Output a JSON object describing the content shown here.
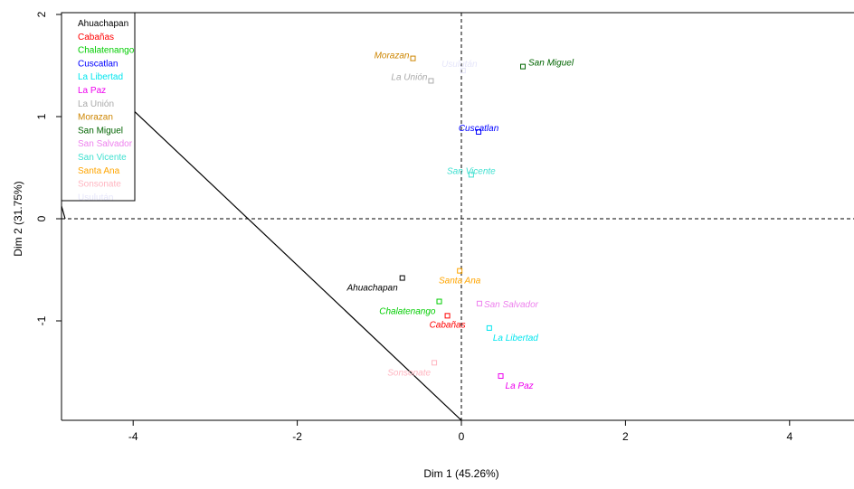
{
  "chart_data": {
    "type": "scatter",
    "xlabel": "Dim 1 (45.26%)",
    "ylabel": "Dim 2 (31.75%)",
    "xlim": [
      -4.85,
      4.85
    ],
    "ylim": [
      -1.95,
      2.0
    ],
    "xticks": [
      -4,
      -2,
      0,
      2,
      4
    ],
    "yticks": [
      -1,
      0,
      1,
      2
    ],
    "grid": false,
    "reference_lines": [
      "x=0 dashed",
      "y=0 dashed"
    ],
    "legend_position": "top-left",
    "series": [
      {
        "name": "Ahuachapan",
        "color": "#000000",
        "x": -0.72,
        "y": -0.58,
        "label": "Ahuachapan"
      },
      {
        "name": "Cabañas",
        "color": "#ff0000",
        "x": -0.17,
        "y": -0.95,
        "label": "Cabañas"
      },
      {
        "name": "Chalatenango",
        "color": "#00cd00",
        "x": -0.27,
        "y": -0.81,
        "label": "Chalatenango"
      },
      {
        "name": "Cuscatlan",
        "color": "#0000ff",
        "x": 0.21,
        "y": 0.85,
        "label": "Cuscatlan"
      },
      {
        "name": "La Libertad",
        "color": "#00e5ee",
        "x": 0.34,
        "y": -1.07,
        "label": "La Libertad"
      },
      {
        "name": "La Paz",
        "color": "#ee00ee",
        "x": 0.48,
        "y": -1.54,
        "label": "La Paz"
      },
      {
        "name": "La Unión",
        "color": "#aaaaaa",
        "x": -0.37,
        "y": 1.35,
        "label": "La Unión"
      },
      {
        "name": "Morazan",
        "color": "#cd8500",
        "x": -0.59,
        "y": 1.57,
        "label": "Morazan"
      },
      {
        "name": "San Miguel",
        "color": "#006400",
        "x": 0.75,
        "y": 1.49,
        "label": "San Miguel"
      },
      {
        "name": "San Salvador",
        "color": "#ee82ee",
        "x": 0.22,
        "y": -0.83,
        "label": "San Salvador"
      },
      {
        "name": "San Vicente",
        "color": "#40e0d0",
        "x": 0.12,
        "y": 0.43,
        "label": "San Vicente"
      },
      {
        "name": "Santa Ana",
        "color": "#ffa500",
        "x": -0.02,
        "y": -0.51,
        "label": "Santa Ana"
      },
      {
        "name": "Sonsonate",
        "color": "#ffb6c1",
        "x": -0.33,
        "y": -1.41,
        "label": "Sonsonate"
      },
      {
        "name": "Usulután",
        "color": "#e6e6fa",
        "x": 0.02,
        "y": 1.45,
        "label": "Usulután"
      }
    ]
  }
}
